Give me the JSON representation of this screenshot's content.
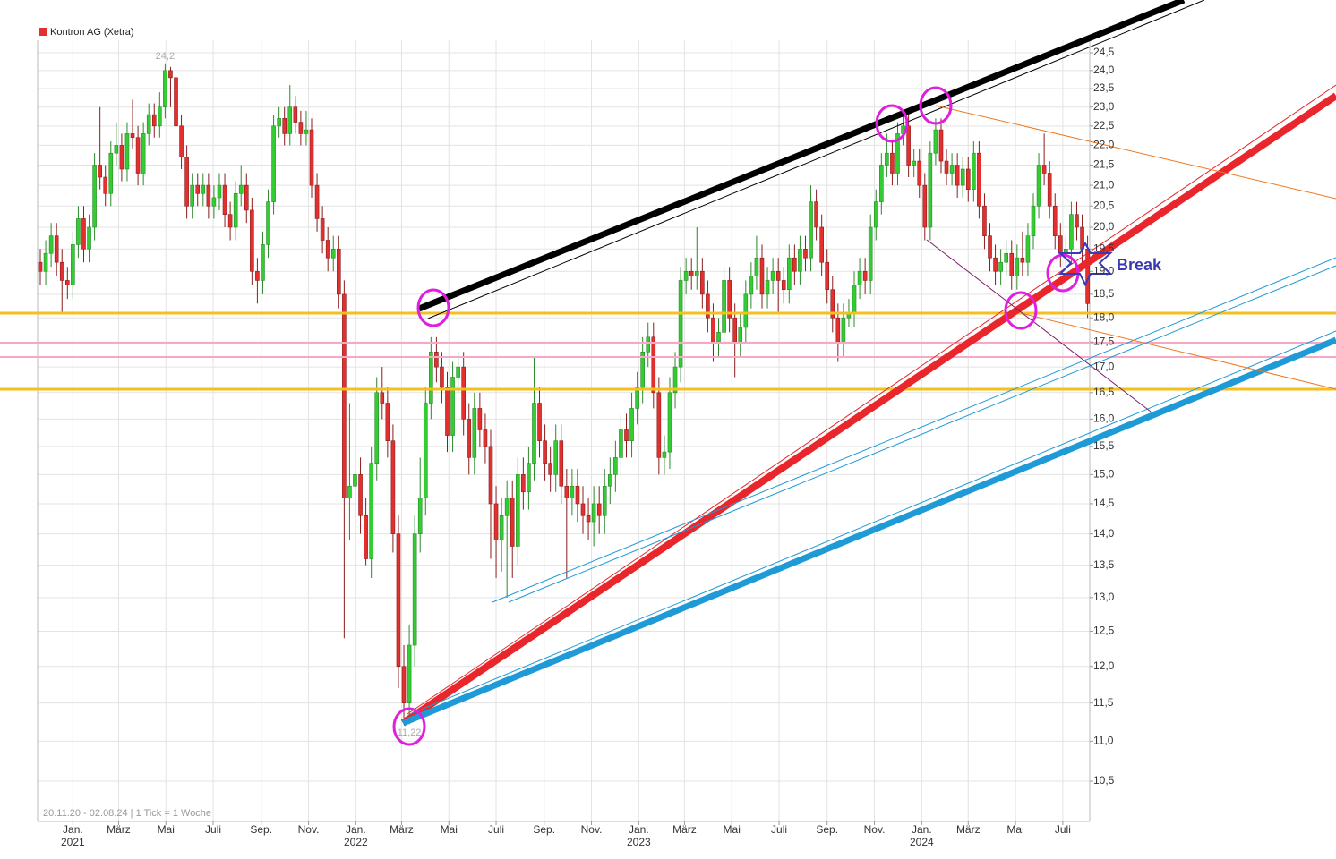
{
  "chart_data": {
    "type": "candlestick",
    "legend": "Kontron AG (Xetra)",
    "legend_color": "#e3302f",
    "color_up": "#33cc33",
    "color_down": "#e3302f",
    "footer": "20.11.20 - 02.08.24 | 1 Tick = 1 Woche",
    "xlim": [
      "2020-11-20",
      "2024-08-02"
    ],
    "log_scale": true,
    "grid": true,
    "ylim": [
      10.02,
      24.86
    ],
    "opens": [
      19.2,
      19.0,
      19.4,
      19.8,
      19.2,
      18.8,
      18.7,
      19.6,
      20.2,
      19.5,
      20.0,
      21.5,
      21.2,
      20.8,
      21.8,
      22.0,
      21.4,
      22.3,
      22.2,
      21.3,
      22.3,
      22.8,
      22.5,
      23.0,
      24.0,
      23.8,
      22.5,
      21.7,
      20.5,
      21.0,
      20.8,
      21.0,
      20.5,
      20.7,
      21.0,
      20.3,
      20.0,
      20.8,
      21.0,
      20.4,
      19.0,
      18.8,
      19.6,
      20.6,
      22.5,
      22.7,
      22.3,
      23.0,
      22.6,
      22.3,
      22.4,
      21.0,
      20.2,
      19.7,
      19.3,
      19.5,
      18.5,
      14.6,
      14.8,
      15.0,
      14.3,
      13.6,
      15.2,
      16.5,
      16.3,
      15.6,
      14.0,
      12.0,
      11.5,
      12.3,
      14.0,
      14.6,
      16.3,
      17.3,
      17.0,
      16.6,
      15.7,
      16.8,
      17.0,
      16.0,
      15.3,
      16.2,
      15.8,
      15.5,
      14.5,
      13.9,
      14.3,
      14.6,
      13.8,
      15.0,
      14.7,
      15.2,
      16.3,
      15.6,
      15.2,
      15.0,
      15.6,
      14.8,
      14.6,
      14.8,
      14.5,
      14.3,
      14.2,
      14.5,
      14.3,
      14.8,
      15.0,
      15.3,
      15.8,
      15.6,
      16.2,
      16.6,
      17.3,
      17.6,
      16.5,
      15.3,
      15.4,
      16.5,
      17.0,
      18.8,
      19.0,
      18.9,
      19.0,
      18.5,
      18.0,
      17.5,
      17.7,
      18.8,
      18.0,
      17.5,
      17.8,
      18.5,
      18.9,
      19.3,
      18.5,
      18.8,
      19.0,
      18.8,
      18.6,
      19.3,
      19.0,
      19.5,
      19.3,
      20.6,
      20.0,
      19.2,
      18.6,
      18.0,
      17.5,
      18.0,
      18.1,
      18.7,
      19.0,
      18.8,
      20.0,
      20.6,
      21.5,
      21.8,
      21.3,
      22.3,
      22.5,
      21.5,
      21.6,
      21.0,
      20.0,
      21.8,
      22.4,
      21.6,
      21.3,
      21.5,
      21.0,
      21.4,
      20.9,
      21.8,
      20.5,
      19.8,
      19.3,
      19.0,
      19.2,
      19.4,
      18.9,
      19.3,
      19.2,
      19.8,
      20.5,
      21.5,
      21.3,
      20.5,
      19.8,
      19.4,
      19.5,
      20.3,
      20.0,
      19.5
    ],
    "highs": [
      19.5,
      19.7,
      20.1,
      20.1,
      19.5,
      19.1,
      19.9,
      20.5,
      20.5,
      20.3,
      21.8,
      23.0,
      21.5,
      22.1,
      22.6,
      22.3,
      22.6,
      23.2,
      22.5,
      22.6,
      23.1,
      23.1,
      23.4,
      24.2,
      24.1,
      23.9,
      22.8,
      22.0,
      21.3,
      21.3,
      21.3,
      21.3,
      21.0,
      21.3,
      21.3,
      20.6,
      21.1,
      21.5,
      21.3,
      20.7,
      19.3,
      19.9,
      20.9,
      22.8,
      23.0,
      23.0,
      23.6,
      23.3,
      22.9,
      22.9,
      22.7,
      21.3,
      20.5,
      20.0,
      19.8,
      19.8,
      18.8,
      16.3,
      15.8,
      15.3,
      14.6,
      15.5,
      16.8,
      17.0,
      16.6,
      15.9,
      14.3,
      12.3,
      12.6,
      14.3,
      15.3,
      16.6,
      17.6,
      17.6,
      17.3,
      16.9,
      17.1,
      17.3,
      17.3,
      16.3,
      16.5,
      16.5,
      16.1,
      15.8,
      14.8,
      14.6,
      14.9,
      14.9,
      15.3,
      15.3,
      15.5,
      17.2,
      16.6,
      15.9,
      15.5,
      15.9,
      15.9,
      15.1,
      15.1,
      15.1,
      14.8,
      14.6,
      14.8,
      14.8,
      15.1,
      15.3,
      15.6,
      16.1,
      16.1,
      16.5,
      16.9,
      17.6,
      17.9,
      17.9,
      16.8,
      15.7,
      16.8,
      17.3,
      19.1,
      19.3,
      19.3,
      20.0,
      19.3,
      18.8,
      18.3,
      18.0,
      19.1,
      19.1,
      18.3,
      18.1,
      18.8,
      19.2,
      19.8,
      19.6,
      19.1,
      19.3,
      19.3,
      19.1,
      19.6,
      19.6,
      19.8,
      19.8,
      21.0,
      20.9,
      20.3,
      19.5,
      18.9,
      18.3,
      18.3,
      18.4,
      19.0,
      19.3,
      19.3,
      20.3,
      20.9,
      21.8,
      22.3,
      22.1,
      22.6,
      22.8,
      22.8,
      21.9,
      21.9,
      21.3,
      22.1,
      22.7,
      22.7,
      21.9,
      21.8,
      21.8,
      21.7,
      21.7,
      22.1,
      22.1,
      20.8,
      20.1,
      19.6,
      19.5,
      19.7,
      19.7,
      19.6,
      19.9,
      20.1,
      20.8,
      21.8,
      22.3,
      21.6,
      20.8,
      20.1,
      19.8,
      20.6,
      20.6,
      20.3,
      19.8
    ],
    "lows": [
      18.7,
      18.7,
      19.1,
      18.9,
      18.1,
      18.4,
      18.4,
      19.3,
      19.2,
      19.2,
      19.7,
      20.9,
      20.5,
      20.5,
      21.5,
      21.1,
      21.1,
      21.9,
      21.0,
      21.0,
      22.0,
      22.2,
      22.2,
      22.7,
      23.0,
      22.2,
      21.4,
      20.2,
      20.2,
      20.5,
      20.5,
      20.2,
      20.2,
      20.4,
      20.0,
      19.7,
      19.7,
      20.5,
      20.1,
      18.7,
      18.3,
      18.5,
      19.3,
      20.3,
      22.2,
      22.0,
      22.0,
      22.3,
      22.0,
      22.0,
      20.7,
      19.9,
      19.4,
      19.0,
      19.0,
      18.2,
      12.4,
      13.9,
      14.5,
      14.0,
      13.5,
      13.3,
      14.9,
      16.0,
      15.3,
      13.7,
      11.7,
      11.3,
      11.22,
      12.0,
      13.7,
      14.3,
      16.0,
      16.7,
      16.3,
      15.4,
      15.4,
      16.5,
      15.7,
      15.0,
      15.0,
      15.5,
      15.2,
      13.6,
      13.3,
      13.4,
      13.0,
      13.3,
      13.5,
      14.4,
      14.4,
      14.9,
      15.3,
      14.9,
      14.7,
      14.7,
      14.5,
      13.3,
      14.3,
      14.2,
      14.0,
      13.9,
      13.8,
      14.0,
      14.0,
      14.5,
      14.7,
      15.0,
      15.3,
      15.3,
      15.9,
      16.3,
      17.0,
      16.2,
      15.0,
      15.0,
      15.1,
      16.2,
      16.7,
      18.5,
      18.6,
      18.6,
      18.2,
      17.7,
      17.1,
      17.2,
      17.4,
      17.7,
      16.8,
      17.2,
      17.5,
      18.2,
      18.6,
      18.2,
      18.2,
      18.5,
      18.1,
      18.3,
      18.3,
      18.7,
      18.7,
      19.0,
      19.0,
      19.7,
      18.9,
      18.3,
      17.7,
      17.1,
      17.2,
      17.8,
      17.8,
      18.4,
      18.5,
      18.5,
      19.7,
      20.3,
      21.2,
      21.0,
      21.0,
      22.0,
      21.2,
      21.2,
      20.7,
      19.7,
      19.7,
      21.5,
      21.3,
      21.0,
      21.0,
      20.7,
      20.7,
      20.6,
      20.6,
      20.2,
      19.5,
      19.0,
      18.7,
      18.7,
      18.9,
      18.6,
      18.6,
      18.9,
      18.9,
      19.5,
      20.2,
      21.0,
      20.2,
      19.5,
      19.1,
      19.1,
      19.2,
      19.7,
      19.2,
      18.0
    ],
    "closes": [
      19.0,
      19.4,
      19.8,
      19.2,
      18.8,
      18.7,
      19.6,
      20.2,
      19.5,
      20.0,
      21.5,
      21.2,
      20.8,
      21.8,
      22.0,
      21.4,
      22.3,
      22.2,
      21.3,
      22.3,
      22.8,
      22.5,
      23.0,
      24.0,
      23.8,
      22.5,
      21.7,
      20.5,
      21.0,
      20.8,
      21.0,
      20.5,
      20.7,
      21.0,
      20.3,
      20.0,
      20.8,
      21.0,
      20.4,
      19.0,
      18.8,
      19.6,
      20.6,
      22.5,
      22.7,
      22.3,
      23.0,
      22.6,
      22.3,
      22.4,
      21.0,
      20.2,
      19.7,
      19.3,
      19.5,
      18.5,
      14.6,
      14.8,
      15.0,
      14.3,
      13.6,
      15.2,
      16.5,
      16.3,
      15.6,
      14.0,
      12.0,
      11.5,
      12.3,
      14.0,
      14.6,
      16.3,
      17.3,
      17.0,
      16.6,
      15.7,
      16.8,
      17.0,
      16.0,
      15.3,
      16.2,
      15.8,
      15.5,
      14.5,
      13.9,
      14.3,
      14.6,
      13.8,
      15.0,
      14.7,
      15.2,
      16.3,
      15.6,
      15.2,
      15.0,
      15.6,
      14.8,
      14.6,
      14.8,
      14.5,
      14.3,
      14.2,
      14.5,
      14.3,
      14.8,
      15.0,
      15.3,
      15.8,
      15.6,
      16.2,
      16.6,
      17.3,
      17.6,
      16.5,
      15.3,
      15.4,
      16.5,
      17.0,
      18.8,
      19.0,
      18.9,
      19.0,
      18.5,
      18.0,
      17.5,
      17.7,
      18.8,
      18.0,
      17.5,
      17.8,
      18.5,
      18.9,
      19.3,
      18.5,
      18.8,
      19.0,
      18.8,
      18.6,
      19.3,
      19.0,
      19.5,
      19.3,
      20.6,
      20.0,
      19.2,
      18.6,
      18.0,
      17.5,
      18.0,
      18.1,
      18.7,
      19.0,
      18.8,
      20.0,
      20.6,
      21.5,
      21.8,
      21.3,
      22.3,
      22.5,
      21.5,
      21.6,
      21.0,
      20.0,
      21.8,
      22.4,
      21.6,
      21.3,
      21.5,
      21.0,
      21.4,
      20.9,
      21.8,
      20.5,
      19.8,
      19.3,
      19.0,
      19.2,
      19.4,
      18.9,
      19.3,
      19.2,
      19.8,
      20.5,
      21.5,
      21.3,
      20.5,
      19.8,
      19.4,
      19.5,
      20.3,
      20.0,
      19.5,
      18.3
    ],
    "yticks": [
      {
        "value": 10.5,
        "label": "10,5"
      },
      {
        "value": 11.0,
        "label": "11,0"
      },
      {
        "value": 11.5,
        "label": "11,5"
      },
      {
        "value": 12.0,
        "label": "12,0"
      },
      {
        "value": 12.5,
        "label": "12,5"
      },
      {
        "value": 13.0,
        "label": "13,0"
      },
      {
        "value": 13.5,
        "label": "13,5"
      },
      {
        "value": 14.0,
        "label": "14,0"
      },
      {
        "value": 14.5,
        "label": "14,5"
      },
      {
        "value": 15.0,
        "label": "15,0"
      },
      {
        "value": 15.5,
        "label": "15,5"
      },
      {
        "value": 16.0,
        "label": "16,0"
      },
      {
        "value": 16.5,
        "label": "16,5"
      },
      {
        "value": 17.0,
        "label": "17,0"
      },
      {
        "value": 17.5,
        "label": "17,5"
      },
      {
        "value": 18.0,
        "label": "18,0"
      },
      {
        "value": 18.5,
        "label": "18,5"
      },
      {
        "value": 19.0,
        "label": "19,0"
      },
      {
        "value": 19.5,
        "label": "19,5"
      },
      {
        "value": 20.0,
        "label": "20,0"
      },
      {
        "value": 20.5,
        "label": "20,5"
      },
      {
        "value": 21.0,
        "label": "21,0"
      },
      {
        "value": 21.5,
        "label": "21,5"
      },
      {
        "value": 22.0,
        "label": "22,0"
      },
      {
        "value": 22.5,
        "label": "22,5"
      },
      {
        "value": 23.0,
        "label": "23,0"
      },
      {
        "value": 23.5,
        "label": "23,5"
      },
      {
        "value": 24.0,
        "label": "24,0"
      },
      {
        "value": 24.5,
        "label": "24,5"
      }
    ],
    "xticks": [
      {
        "value": "2021-01",
        "label": "Jan."
      },
      {
        "value": "2021-03",
        "label": "März"
      },
      {
        "value": "2021-05",
        "label": "Mai"
      },
      {
        "value": "2021-07",
        "label": "Juli"
      },
      {
        "value": "2021-09",
        "label": "Sep."
      },
      {
        "value": "2021-11",
        "label": "Nov."
      },
      {
        "value": "2022-01",
        "label": "Jan."
      },
      {
        "value": "2022-03",
        "label": "März"
      },
      {
        "value": "2022-05",
        "label": "Mai"
      },
      {
        "value": "2022-07",
        "label": "Juli"
      },
      {
        "value": "2022-09",
        "label": "Sep."
      },
      {
        "value": "2022-11",
        "label": "Nov."
      },
      {
        "value": "2023-01",
        "label": "Jan."
      },
      {
        "value": "2023-03",
        "label": "März"
      },
      {
        "value": "2023-05",
        "label": "Mai"
      },
      {
        "value": "2023-07",
        "label": "Juli"
      },
      {
        "value": "2023-09",
        "label": "Sep."
      },
      {
        "value": "2023-11",
        "label": "Nov."
      },
      {
        "value": "2024-01",
        "label": "Jan."
      },
      {
        "value": "2024-03",
        "label": "März"
      },
      {
        "value": "2024-05",
        "label": "Mai"
      },
      {
        "value": "2024-07",
        "label": "Juli"
      }
    ],
    "x_year_labels": [
      {
        "value": "2021-01",
        "label": "2021"
      },
      {
        "value": "2022-01",
        "label": "2022"
      },
      {
        "value": "2023-01",
        "label": "2023"
      },
      {
        "value": "2024-01",
        "label": "2024"
      }
    ],
    "high_label": {
      "value": 24.2,
      "label": "24,2"
    },
    "low_label": {
      "value": 11.22,
      "label": "11,22"
    },
    "annotation": "Break"
  }
}
